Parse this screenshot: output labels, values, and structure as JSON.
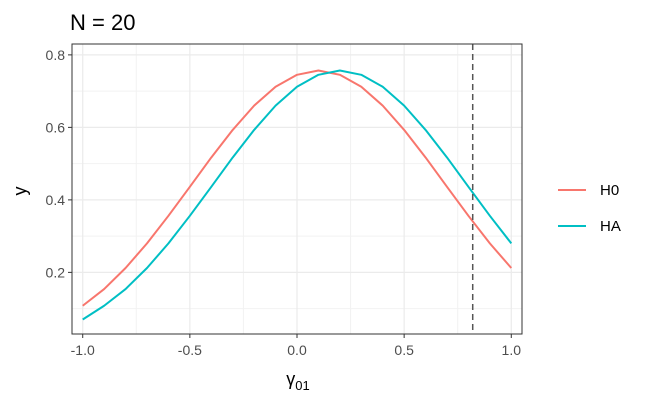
{
  "chart_data": {
    "type": "line",
    "title": "N = 20",
    "xlabel": "γ",
    "xlabel_sub": "01",
    "ylabel": "y",
    "xlim": [
      -1.05,
      1.05
    ],
    "ylim": [
      0.03,
      0.83
    ],
    "x_ticks": [
      -1.0,
      -0.5,
      0.0,
      0.5,
      1.0
    ],
    "x_tick_labels": [
      "-1.0",
      "-0.5",
      "0.0",
      "0.5",
      "1.0"
    ],
    "y_ticks": [
      0.2,
      0.4,
      0.6,
      0.8
    ],
    "y_tick_labels": [
      "0.2",
      "0.4",
      "0.6",
      "0.8"
    ],
    "grid": true,
    "legend_position": "right",
    "vline_x": 0.82,
    "series": [
      {
        "name": "H0",
        "color": "#F8766D",
        "x": [
          -1.0,
          -0.9,
          -0.8,
          -0.7,
          -0.6,
          -0.5,
          -0.4,
          -0.3,
          -0.2,
          -0.1,
          0.0,
          0.1,
          0.2,
          0.3,
          0.4,
          0.5,
          0.6,
          0.7,
          0.8,
          0.9,
          1.0
        ],
        "y": [
          0.108,
          0.154,
          0.212,
          0.28,
          0.356,
          0.436,
          0.517,
          0.593,
          0.66,
          0.712,
          0.745,
          0.757,
          0.745,
          0.712,
          0.66,
          0.593,
          0.517,
          0.436,
          0.356,
          0.28,
          0.212
        ]
      },
      {
        "name": "HA",
        "color": "#00BFC4",
        "x": [
          -1.0,
          -0.9,
          -0.8,
          -0.7,
          -0.6,
          -0.5,
          -0.4,
          -0.3,
          -0.2,
          -0.1,
          0.0,
          0.1,
          0.2,
          0.3,
          0.4,
          0.5,
          0.6,
          0.7,
          0.8,
          0.9,
          1.0
        ],
        "y": [
          0.07,
          0.108,
          0.154,
          0.212,
          0.28,
          0.356,
          0.436,
          0.517,
          0.593,
          0.66,
          0.712,
          0.745,
          0.757,
          0.745,
          0.712,
          0.66,
          0.593,
          0.517,
          0.436,
          0.356,
          0.28
        ]
      }
    ]
  }
}
